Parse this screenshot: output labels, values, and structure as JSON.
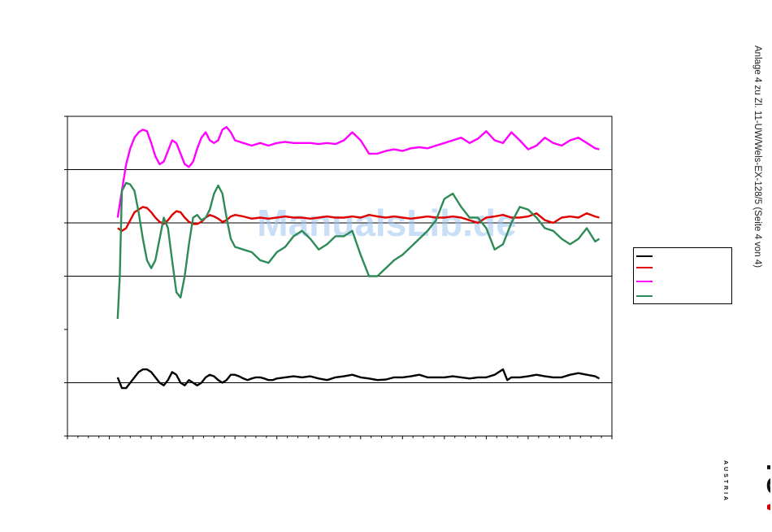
{
  "side_note": "Anlage 4 zu Zl. 11-UW/Wels-EX-128/5 (Seite 4 von 4)",
  "watermark": "ManualsLib.de",
  "logo": {
    "brand": "TÜV",
    "sub": "AUSTRIA",
    "icon": "tuv-austria-logo"
  },
  "chart_data": {
    "type": "line",
    "title": "",
    "xlabel": "",
    "ylabel": "",
    "xlim": [
      0,
      130
    ],
    "ylim": [
      0,
      6
    ],
    "y_gridlines": [
      1,
      3,
      4,
      5
    ],
    "legend_placement": "right",
    "series": [
      {
        "color": "#000000",
        "x": [
          12,
          13,
          14,
          15,
          16,
          17,
          18,
          19,
          20,
          21,
          22,
          23,
          24,
          25,
          26,
          27,
          28,
          29,
          30,
          31,
          32,
          33,
          34,
          35,
          36,
          37,
          38,
          39,
          40,
          41,
          42,
          43,
          44,
          45,
          46,
          47,
          48,
          49,
          50,
          52,
          54,
          56,
          58,
          60,
          62,
          64,
          66,
          68,
          70,
          72,
          74,
          76,
          78,
          80,
          82,
          84,
          86,
          88,
          90,
          92,
          94,
          96,
          98,
          100,
          102,
          103,
          104,
          105,
          106,
          108,
          110,
          112,
          114,
          116,
          118,
          120,
          122,
          124,
          126,
          127
        ],
        "y": [
          1.1,
          0.9,
          0.9,
          1.0,
          1.1,
          1.2,
          1.25,
          1.25,
          1.2,
          1.1,
          1.0,
          0.95,
          1.05,
          1.2,
          1.15,
          1.0,
          0.95,
          1.05,
          1.0,
          0.95,
          1.0,
          1.1,
          1.15,
          1.12,
          1.05,
          1.0,
          1.05,
          1.15,
          1.15,
          1.12,
          1.08,
          1.05,
          1.08,
          1.1,
          1.1,
          1.08,
          1.05,
          1.05,
          1.08,
          1.1,
          1.12,
          1.1,
          1.12,
          1.08,
          1.05,
          1.1,
          1.12,
          1.15,
          1.1,
          1.08,
          1.05,
          1.06,
          1.1,
          1.1,
          1.12,
          1.15,
          1.1,
          1.1,
          1.1,
          1.12,
          1.1,
          1.08,
          1.1,
          1.1,
          1.15,
          1.2,
          1.25,
          1.05,
          1.1,
          1.1,
          1.12,
          1.15,
          1.12,
          1.1,
          1.1,
          1.15,
          1.18,
          1.15,
          1.12,
          1.08
        ]
      },
      {
        "color": "#e00000",
        "x": [
          12,
          13,
          14,
          15,
          16,
          17,
          18,
          19,
          20,
          21,
          22,
          23,
          24,
          25,
          26,
          27,
          28,
          29,
          30,
          31,
          32,
          33,
          34,
          35,
          36,
          37,
          38,
          39,
          40,
          42,
          44,
          46,
          48,
          50,
          52,
          54,
          56,
          58,
          60,
          62,
          64,
          66,
          68,
          70,
          72,
          74,
          76,
          78,
          80,
          82,
          84,
          86,
          88,
          90,
          92,
          94,
          96,
          98,
          100,
          102,
          104,
          106,
          108,
          110,
          112,
          114,
          116,
          118,
          120,
          122,
          124,
          126,
          127
        ],
        "y": [
          3.9,
          3.85,
          3.9,
          4.05,
          4.2,
          4.25,
          4.3,
          4.28,
          4.2,
          4.1,
          4.02,
          3.98,
          4.05,
          4.15,
          4.22,
          4.2,
          4.1,
          4.02,
          3.98,
          3.98,
          4.02,
          4.1,
          4.15,
          4.12,
          4.08,
          4.02,
          4.05,
          4.12,
          4.15,
          4.12,
          4.08,
          4.1,
          4.08,
          4.1,
          4.12,
          4.1,
          4.1,
          4.08,
          4.1,
          4.12,
          4.1,
          4.1,
          4.12,
          4.1,
          4.15,
          4.12,
          4.1,
          4.12,
          4.1,
          4.08,
          4.1,
          4.12,
          4.1,
          4.1,
          4.12,
          4.1,
          4.05,
          4.0,
          4.1,
          4.12,
          4.15,
          4.1,
          4.1,
          4.12,
          4.18,
          4.05,
          4.0,
          4.1,
          4.12,
          4.1,
          4.18,
          4.12,
          4.1
        ]
      },
      {
        "color": "#ff00ff",
        "x": [
          12,
          13,
          14,
          15,
          16,
          17,
          18,
          19,
          20,
          21,
          22,
          23,
          24,
          25,
          26,
          27,
          28,
          29,
          30,
          31,
          32,
          33,
          34,
          35,
          36,
          37,
          38,
          39,
          40,
          42,
          44,
          46,
          48,
          50,
          52,
          54,
          56,
          58,
          60,
          62,
          64,
          66,
          68,
          70,
          72,
          74,
          76,
          78,
          80,
          82,
          84,
          86,
          88,
          90,
          92,
          94,
          96,
          98,
          100,
          102,
          104,
          106,
          108,
          110,
          112,
          114,
          116,
          118,
          120,
          122,
          124,
          126,
          127
        ],
        "y": [
          4.1,
          4.6,
          5.1,
          5.4,
          5.6,
          5.7,
          5.75,
          5.72,
          5.5,
          5.25,
          5.1,
          5.15,
          5.35,
          5.55,
          5.5,
          5.3,
          5.1,
          5.05,
          5.15,
          5.4,
          5.6,
          5.7,
          5.55,
          5.5,
          5.55,
          5.75,
          5.8,
          5.7,
          5.55,
          5.5,
          5.45,
          5.5,
          5.45,
          5.5,
          5.52,
          5.5,
          5.5,
          5.5,
          5.48,
          5.5,
          5.48,
          5.55,
          5.7,
          5.55,
          5.3,
          5.3,
          5.35,
          5.38,
          5.35,
          5.4,
          5.42,
          5.4,
          5.45,
          5.5,
          5.55,
          5.6,
          5.5,
          5.58,
          5.72,
          5.55,
          5.5,
          5.7,
          5.55,
          5.38,
          5.45,
          5.6,
          5.5,
          5.45,
          5.55,
          5.6,
          5.5,
          5.4,
          5.38
        ]
      },
      {
        "color": "#2e8b57",
        "x": [
          12,
          12.5,
          13,
          14,
          15,
          16,
          17,
          18,
          19,
          20,
          21,
          22,
          23,
          24,
          25,
          26,
          27,
          28,
          29,
          30,
          31,
          32,
          33,
          34,
          35,
          36,
          37,
          38,
          39,
          40,
          42,
          44,
          46,
          48,
          50,
          52,
          54,
          56,
          58,
          60,
          62,
          64,
          66,
          68,
          70,
          72,
          74,
          76,
          78,
          80,
          82,
          84,
          86,
          88,
          90,
          92,
          94,
          96,
          98,
          100,
          102,
          104,
          106,
          108,
          110,
          112,
          114,
          116,
          118,
          120,
          122,
          124,
          126,
          127
        ],
        "y": [
          2.2,
          3.0,
          4.6,
          4.75,
          4.72,
          4.6,
          4.2,
          3.7,
          3.3,
          3.15,
          3.3,
          3.7,
          4.1,
          3.9,
          3.3,
          2.7,
          2.6,
          3.0,
          3.6,
          4.1,
          4.15,
          4.05,
          4.1,
          4.25,
          4.55,
          4.7,
          4.55,
          4.1,
          3.7,
          3.55,
          3.5,
          3.45,
          3.3,
          3.25,
          3.45,
          3.55,
          3.75,
          3.85,
          3.7,
          3.5,
          3.6,
          3.75,
          3.75,
          3.85,
          3.4,
          3.0,
          3.0,
          3.15,
          3.3,
          3.4,
          3.55,
          3.7,
          3.85,
          4.05,
          4.45,
          4.55,
          4.3,
          4.1,
          4.1,
          3.9,
          3.5,
          3.6,
          4.0,
          4.3,
          4.25,
          4.1,
          3.9,
          3.85,
          3.7,
          3.6,
          3.7,
          3.9,
          3.65,
          3.7
        ]
      }
    ]
  }
}
